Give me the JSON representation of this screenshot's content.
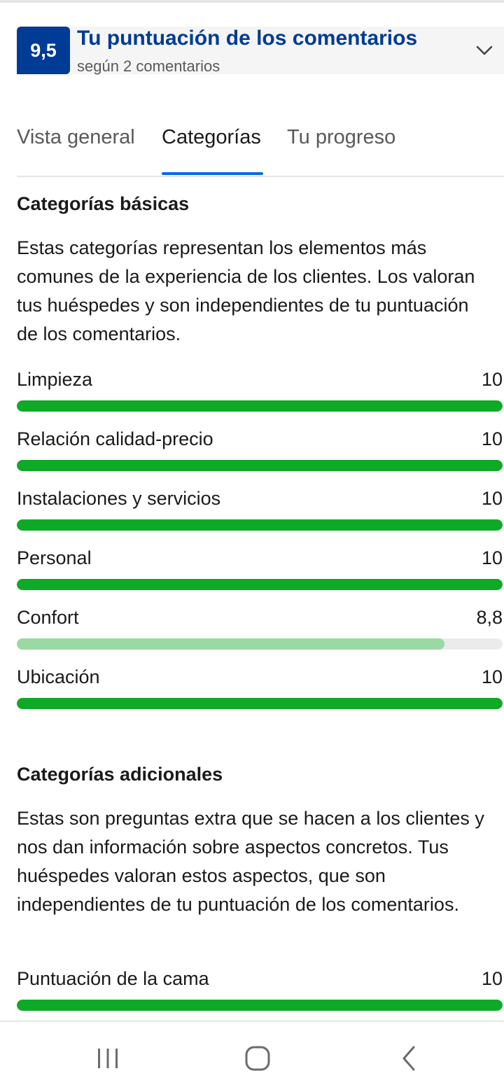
{
  "header": {
    "score": "9,5",
    "title": "Tu puntuación de los comentarios",
    "subtitle": "según 2 comentarios"
  },
  "tabs": [
    {
      "label": "Vista general",
      "active": false
    },
    {
      "label": "Categorías",
      "active": true
    },
    {
      "label": "Tu progreso",
      "active": false
    }
  ],
  "basic": {
    "title": "Categorías básicas",
    "description": "Estas categorías representan los elementos más comunes de la experiencia de los clientes. Los valoran tus huéspedes y son independientes de tu puntuación de los comentarios.",
    "items": [
      {
        "label": "Limpieza",
        "value": "10",
        "score": 10
      },
      {
        "label": "Relación calidad-precio",
        "value": "10",
        "score": 10
      },
      {
        "label": "Instalaciones y servicios",
        "value": "10",
        "score": 10
      },
      {
        "label": "Personal",
        "value": "10",
        "score": 10
      },
      {
        "label": "Confort",
        "value": "8,8",
        "score": 8.8
      },
      {
        "label": "Ubicación",
        "value": "10",
        "score": 10
      }
    ]
  },
  "additional": {
    "title": "Categorías adicionales",
    "description": "Estas son preguntas extra que se hacen a los clientes y nos dan información sobre aspectos concretos. Tus huéspedes valoran estos aspectos, que son independientes de tu puntuación de los comentarios.",
    "items": [
      {
        "label": "Puntuación de la cama",
        "value": "10",
        "score": 10
      }
    ]
  },
  "colors": {
    "brand": "#003b95",
    "tab_indicator": "#006ce4",
    "bar_full": "#0eaa27",
    "bar_partial": "#9ad8a4"
  },
  "icons": {
    "expand": "chevron-down-icon",
    "nav_recents": "recents-icon",
    "nav_home": "home-icon",
    "nav_back": "back-icon"
  }
}
